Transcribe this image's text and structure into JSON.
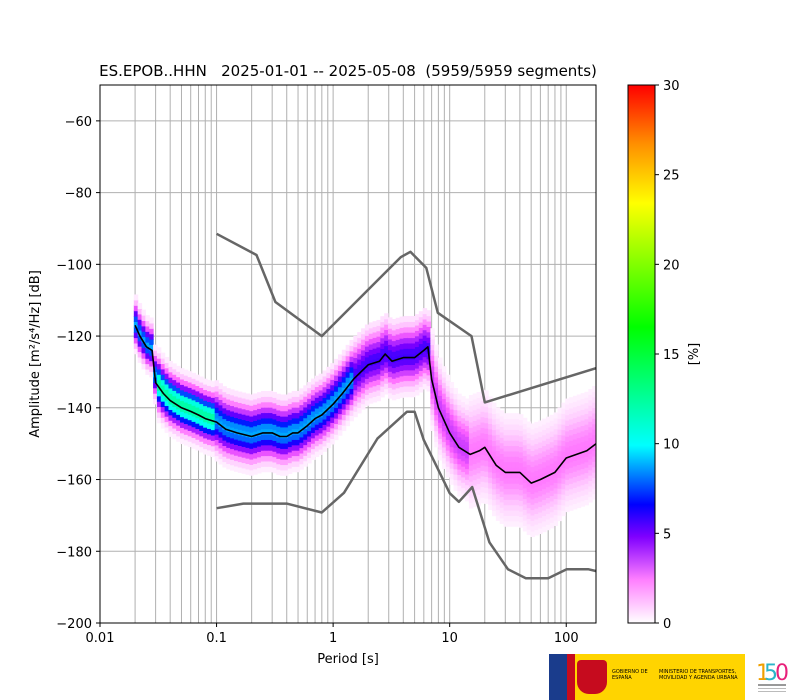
{
  "chart_data": {
    "type": "heatmap",
    "title": "ES.EPOB..HHN   2025-01-01 -- 2025-05-08  (5959/5959 segments)",
    "xlabel": "Period [s]",
    "ylabel": "Amplitude [m²/s⁴/Hz] [dB]",
    "x_scale": "log",
    "xlim": [
      0.01,
      180
    ],
    "ylim": [
      -200,
      -50
    ],
    "x_ticks": [
      0.01,
      0.1,
      1,
      10,
      100
    ],
    "x_tick_labels": [
      "0.01",
      "0.1",
      "1",
      "10",
      "100"
    ],
    "y_ticks": [
      -60,
      -80,
      -100,
      -120,
      -140,
      -160,
      -180,
      -200
    ],
    "y_tick_labels": [
      "−60",
      "−80",
      "−100",
      "−120",
      "−140",
      "−160",
      "−180",
      "−200"
    ],
    "grid": true,
    "colorbar": {
      "label": "[%]",
      "range": [
        0,
        30
      ],
      "ticks": [
        0,
        5,
        10,
        15,
        20,
        25,
        30
      ],
      "tick_labels": [
        "0",
        "5",
        "10",
        "15",
        "20",
        "25",
        "30"
      ]
    },
    "series": [
      {
        "role": "mode",
        "color": "#000000",
        "x": [
          0.02,
          0.022,
          0.025,
          0.028,
          0.03,
          0.035,
          0.04,
          0.05,
          0.06,
          0.07,
          0.08,
          0.1,
          0.12,
          0.15,
          0.2,
          0.25,
          0.3,
          0.35,
          0.4,
          0.45,
          0.5,
          0.6,
          0.7,
          0.8,
          1.0,
          1.2,
          1.5,
          2.0,
          2.5,
          2.8,
          3.2,
          4.0,
          5.0,
          6.0,
          6.5,
          7.0,
          8.0,
          10.0,
          12.0,
          15.0,
          18.0,
          20.0,
          25.0,
          30.0,
          40.0,
          50.0,
          60.0,
          80.0,
          100.0,
          150.0,
          180.0
        ],
        "y": [
          -117,
          -120,
          -123,
          -124,
          -133,
          -136,
          -138,
          -140,
          -141,
          -142,
          -143,
          -144,
          -146,
          -147,
          -148,
          -147,
          -147,
          -148,
          -148,
          -147,
          -147,
          -145,
          -143,
          -142,
          -139,
          -136,
          -132,
          -128,
          -127,
          -125,
          -127,
          -126,
          -126,
          -124,
          -123,
          -132,
          -140,
          -147,
          -151,
          -153,
          -152,
          -151,
          -156,
          -158,
          -158,
          -161,
          -160,
          -158,
          -154,
          -152,
          -150
        ]
      },
      {
        "role": "high_noise_model",
        "color": "#666666",
        "x": [
          0.1,
          0.22,
          0.32,
          0.8,
          3.8,
          4.6,
          6.3,
          7.9,
          15.4,
          20.0,
          354.8
        ],
        "y": [
          -91.5,
          -97.4,
          -110.5,
          -120.0,
          -98.0,
          -96.5,
          -101.0,
          -113.5,
          -120.0,
          -138.5,
          -126.0
        ]
      },
      {
        "role": "low_noise_model",
        "color": "#666666",
        "x": [
          0.1,
          0.17,
          0.4,
          0.8,
          1.24,
          2.4,
          4.3,
          5.0,
          6.0,
          10.0,
          12.0,
          15.6,
          21.9,
          31.6,
          45.0,
          70.0,
          101.0,
          154.0,
          328.0
        ],
        "y": [
          -168.0,
          -166.7,
          -166.7,
          -169.2,
          -163.7,
          -148.6,
          -141.1,
          -141.1,
          -149.0,
          -163.8,
          -166.2,
          -162.1,
          -177.5,
          -185.0,
          -187.5,
          -187.5,
          -185.0,
          -185.0,
          -187.5
        ]
      }
    ]
  },
  "logos": {
    "ministry_text_1": "GOBIERNO DE ESPAÑA",
    "ministry_text_2": "MINISTERIO DE TRANSPORTES, MOVILIDAD Y AGENDA URBANA",
    "anniversary_text": "Instituto Geográfico Nacional 1870-2020",
    "bar_color": "#ffd400"
  }
}
